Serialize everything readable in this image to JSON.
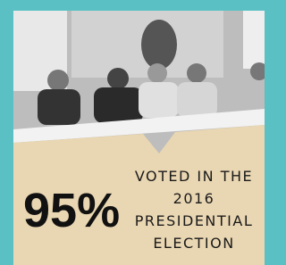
{
  "stat": {
    "value": "95%",
    "caption_lines": [
      "VOTED IN THE",
      "2016",
      "PRESIDENTIAL",
      "ELECTION"
    ]
  }
}
